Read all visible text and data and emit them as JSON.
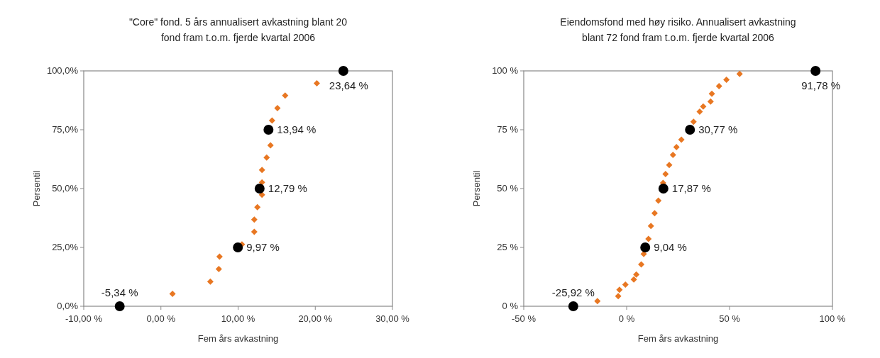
{
  "chart_data": [
    {
      "type": "scatter",
      "title": "\"Core\" fond. 5 års annualisert avkastning blant 20\nfond fram t.o.m. fjerde kvartal 2006",
      "xlabel": "Fem års avkastning",
      "ylabel": "Persentil",
      "xlim": [
        -10,
        30
      ],
      "xticks": [
        {
          "value": -10,
          "label": "-10,00 %"
        },
        {
          "value": 0,
          "label": "0,00 %"
        },
        {
          "value": 10,
          "label": "10,00 %"
        },
        {
          "value": 20,
          "label": "20,00 %"
        },
        {
          "value": 30,
          "label": "30,00 %"
        }
      ],
      "ylim": [
        0,
        100
      ],
      "yticks": [
        {
          "value": 0,
          "label": "0,0%"
        },
        {
          "value": 25,
          "label": "25,0%"
        },
        {
          "value": 50,
          "label": "50,0%"
        },
        {
          "value": 75,
          "label": "75,0%"
        },
        {
          "value": 100,
          "label": "100,0%"
        }
      ],
      "grid": false,
      "series": [
        {
          "color": "#e87722",
          "marker": "diamond",
          "x": [
            1.5,
            6.4,
            7.5,
            7.6,
            10.5,
            12.1,
            12.1,
            12.5,
            13.1,
            13.1,
            13.1,
            13.7,
            14.2,
            14.4,
            15.1,
            16.1,
            20.2
          ],
          "values": [
            5.3,
            10.5,
            15.8,
            21.1,
            26.3,
            31.6,
            36.8,
            42.1,
            47.4,
            52.6,
            57.9,
            63.2,
            68.4,
            78.9,
            84.2,
            89.5,
            94.7
          ]
        },
        {
          "color": "#000000",
          "marker": "circle",
          "x": [
            -5.34,
            9.97,
            12.79,
            13.94,
            23.64
          ],
          "values": [
            0,
            25,
            50,
            75,
            100
          ]
        }
      ],
      "annotations": [
        {
          "text": "-5,34 %",
          "x": -5.34,
          "y": 0
        },
        {
          "text": "9,97 %",
          "x": 9.97,
          "y": 25
        },
        {
          "text": "12,79 %",
          "x": 12.79,
          "y": 50
        },
        {
          "text": "13,94 %",
          "x": 13.94,
          "y": 75
        },
        {
          "text": "23,64 %",
          "x": 23.64,
          "y": 100
        }
      ]
    },
    {
      "type": "scatter",
      "title": "Eiendomsfond med høy risiko. Annualisert avkastning\nblant 72 fond fram t.o.m. fjerde kvartal 2006",
      "xlabel": "Fem års avkastning",
      "ylabel": "Persentil",
      "xlim": [
        -50,
        100
      ],
      "xticks": [
        {
          "value": -50,
          "label": "-50 %"
        },
        {
          "value": 0,
          "label": "0 %"
        },
        {
          "value": 50,
          "label": "50 %"
        },
        {
          "value": 100,
          "label": "100 %"
        }
      ],
      "ylim": [
        0,
        100
      ],
      "yticks": [
        {
          "value": 0,
          "label": "0 %"
        },
        {
          "value": 25,
          "label": "25 %"
        },
        {
          "value": 50,
          "label": "50 %"
        },
        {
          "value": 75,
          "label": "75 %"
        },
        {
          "value": 100,
          "label": "100 %"
        }
      ],
      "grid": false,
      "series": [
        {
          "color": "#e87722",
          "marker": "diamond",
          "x": [
            -14.2,
            -4.1,
            -3.5,
            -0.6,
            3.5,
            4.7,
            7.1,
            8.3,
            10.6,
            11.8,
            13.6,
            15.4,
            17.7,
            18.9,
            20.7,
            22.5,
            24.2,
            26.6,
            32.5,
            35.5,
            37.2,
            40.8,
            41.4,
            44.9,
            48.5,
            54.9
          ],
          "values": [
            2.2,
            4.3,
            7.0,
            9.2,
            11.4,
            13.5,
            17.8,
            22.2,
            28.6,
            34.1,
            39.5,
            44.9,
            52.4,
            56.2,
            60,
            64.3,
            67.6,
            70.8,
            78.4,
            82.7,
            84.9,
            87,
            90.3,
            93.5,
            96.2,
            98.7
          ]
        },
        {
          "color": "#000000",
          "marker": "circle",
          "x": [
            -25.92,
            9.04,
            17.87,
            30.77,
            91.78
          ],
          "values": [
            0,
            25,
            50,
            75,
            100
          ]
        }
      ],
      "annotations": [
        {
          "text": "-25,92 %",
          "x": -25.92,
          "y": 0
        },
        {
          "text": "9,04 %",
          "x": 9.04,
          "y": 25
        },
        {
          "text": "17,87 %",
          "x": 17.87,
          "y": 50
        },
        {
          "text": "30,77 %",
          "x": 30.77,
          "y": 75
        },
        {
          "text": "91,78 %",
          "x": 91.78,
          "y": 100
        }
      ]
    }
  ]
}
